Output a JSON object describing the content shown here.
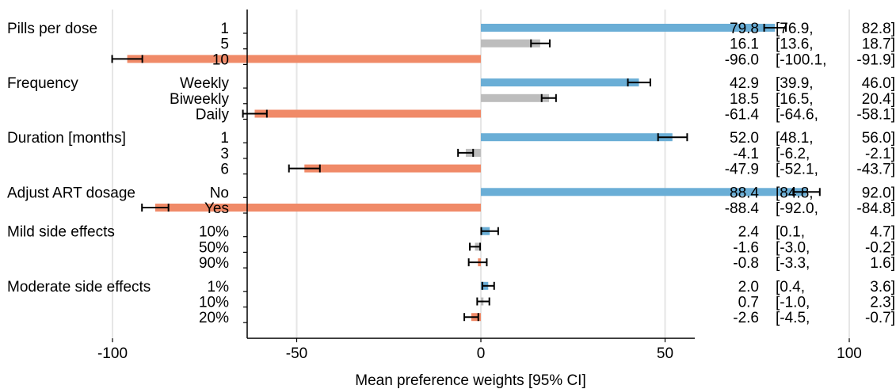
{
  "chart_data": {
    "type": "bar",
    "orientation": "horizontal",
    "xlabel": "Mean preference weights [95% CI]",
    "xlim": [
      -125,
      115
    ],
    "xticks": [
      -100,
      -50,
      0,
      50,
      100
    ],
    "xtick_labels": [
      "-100",
      "-50",
      "0",
      "50",
      "100"
    ],
    "grid": true,
    "colors": {
      "positive": "#6aaed6",
      "neutral": "#bdbdbd",
      "negative": "#f08a68"
    },
    "groups": [
      {
        "name": "Pills per dose",
        "levels": [
          {
            "label": "1",
            "value": 79.8,
            "ci_low": 76.9,
            "ci_high": 82.8,
            "color": "positive",
            "text": [
              "79.8",
              "[76.9,",
              "82.8]"
            ]
          },
          {
            "label": "5",
            "value": 16.1,
            "ci_low": 13.6,
            "ci_high": 18.7,
            "color": "neutral",
            "text": [
              "16.1",
              "[13.6,",
              "18.7]"
            ]
          },
          {
            "label": "10",
            "value": -96.0,
            "ci_low": -100.1,
            "ci_high": -91.9,
            "color": "negative",
            "text": [
              "-96.0",
              "[-100.1,",
              "-91.9]"
            ]
          }
        ]
      },
      {
        "name": "Frequency",
        "levels": [
          {
            "label": "Weekly",
            "value": 42.9,
            "ci_low": 39.9,
            "ci_high": 46.0,
            "color": "positive",
            "text": [
              "42.9",
              "[39.9,",
              "46.0]"
            ]
          },
          {
            "label": "Biweekly",
            "value": 18.5,
            "ci_low": 16.5,
            "ci_high": 20.4,
            "color": "neutral",
            "text": [
              "18.5",
              "[16.5,",
              "20.4]"
            ]
          },
          {
            "label": "Daily",
            "value": -61.4,
            "ci_low": -64.6,
            "ci_high": -58.1,
            "color": "negative",
            "text": [
              "-61.4",
              "[-64.6,",
              "-58.1]"
            ]
          }
        ]
      },
      {
        "name": "Duration [months]",
        "levels": [
          {
            "label": "1",
            "value": 52.0,
            "ci_low": 48.1,
            "ci_high": 56.0,
            "color": "positive",
            "text": [
              "52.0",
              "[48.1,",
              "56.0]"
            ]
          },
          {
            "label": "3",
            "value": -4.1,
            "ci_low": -6.2,
            "ci_high": -2.1,
            "color": "neutral",
            "text": [
              "-4.1",
              "[-6.2,",
              "-2.1]"
            ]
          },
          {
            "label": "6",
            "value": -47.9,
            "ci_low": -52.1,
            "ci_high": -43.7,
            "color": "negative",
            "text": [
              "-47.9",
              "[-52.1,",
              "-43.7]"
            ]
          }
        ]
      },
      {
        "name": "Adjust ART dosage",
        "levels": [
          {
            "label": "No",
            "value": 88.4,
            "ci_low": 84.8,
            "ci_high": 92.0,
            "color": "positive",
            "text": [
              "88.4",
              "[84.8,",
              "92.0]"
            ]
          },
          {
            "label": "Yes",
            "value": -88.4,
            "ci_low": -92.0,
            "ci_high": -84.8,
            "color": "negative",
            "text": [
              "-88.4",
              "[-92.0,",
              "-84.8]"
            ]
          }
        ]
      },
      {
        "name": "Mild side effects",
        "levels": [
          {
            "label": "10%",
            "value": 2.4,
            "ci_low": 0.1,
            "ci_high": 4.7,
            "color": "positive",
            "text": [
              "2.4",
              "[0.1,",
              "4.7]"
            ]
          },
          {
            "label": "50%",
            "value": -1.6,
            "ci_low": -3.0,
            "ci_high": -0.2,
            "color": "neutral",
            "text": [
              "-1.6",
              "[-3.0,",
              "-0.2]"
            ]
          },
          {
            "label": "90%",
            "value": -0.8,
            "ci_low": -3.3,
            "ci_high": 1.6,
            "color": "negative",
            "text": [
              "-0.8",
              "[-3.3,",
              "1.6]"
            ]
          }
        ]
      },
      {
        "name": "Moderate side effects",
        "levels": [
          {
            "label": "1%",
            "value": 2.0,
            "ci_low": 0.4,
            "ci_high": 3.6,
            "color": "positive",
            "text": [
              "2.0",
              "[0.4,",
              "3.6]"
            ]
          },
          {
            "label": "10%",
            "value": 0.7,
            "ci_low": -1.0,
            "ci_high": 2.3,
            "color": "neutral",
            "text": [
              "0.7",
              "[-1.0,",
              "2.3]"
            ]
          },
          {
            "label": "20%",
            "value": -2.6,
            "ci_low": -4.5,
            "ci_high": -0.7,
            "color": "negative",
            "text": [
              "-2.6",
              "[-4.5,",
              "-0.7]"
            ]
          }
        ]
      }
    ]
  }
}
